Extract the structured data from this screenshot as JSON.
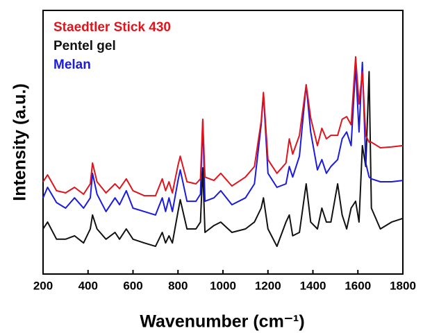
{
  "chart_data": {
    "type": "line",
    "x_label": "Wavenumber (cm⁻¹)",
    "y_label": "Intensity (a.u.)",
    "xlim": [
      200,
      1800
    ],
    "xticks": [
      200,
      400,
      600,
      800,
      1000,
      1200,
      1400,
      1600,
      1800
    ],
    "ylim": [
      0,
      100
    ],
    "x": [
      200,
      220,
      260,
      300,
      340,
      380,
      410,
      420,
      440,
      480,
      520,
      540,
      570,
      600,
      650,
      700,
      730,
      745,
      760,
      775,
      800,
      810,
      840,
      880,
      900,
      910,
      920,
      960,
      990,
      1040,
      1100,
      1140,
      1170,
      1180,
      1200,
      1240,
      1280,
      1295,
      1310,
      1340,
      1370,
      1390,
      1420,
      1440,
      1460,
      1480,
      1510,
      1530,
      1550,
      1570,
      1590,
      1605,
      1620,
      1635,
      1650,
      1660,
      1700,
      1750,
      1800
    ],
    "series": [
      {
        "name": "Staedtler Stick 430",
        "color": "#e0141c",
        "values": [
          35.0,
          37.6,
          31.6,
          30.8,
          32.9,
          30.3,
          34.2,
          42.1,
          35.0,
          30.8,
          34.2,
          32.4,
          36.1,
          31.6,
          29.7,
          29.7,
          36.1,
          31.6,
          35.0,
          30.8,
          41.3,
          44.7,
          35.0,
          34.2,
          36.1,
          58.7,
          36.8,
          35.5,
          38.2,
          33.4,
          36.8,
          40.8,
          57.9,
          68.9,
          43.4,
          38.2,
          42.1,
          51.3,
          45.5,
          52.6,
          71.8,
          59.2,
          48.7,
          55.3,
          51.3,
          52.6,
          52.6,
          58.7,
          59.7,
          56.6,
          82.4,
          64.5,
          76.8,
          52.6,
          50.0,
          50.0,
          47.9,
          48.2,
          48.7
        ]
      },
      {
        "name": "Pentel gel",
        "color": "#111111",
        "values": [
          17.1,
          19.7,
          13.2,
          13.2,
          14.5,
          11.8,
          17.1,
          22.4,
          17.1,
          13.2,
          15.8,
          13.2,
          17.1,
          13.2,
          11.8,
          10.5,
          15.8,
          11.8,
          14.5,
          11.8,
          23.7,
          28.2,
          17.1,
          17.1,
          19.7,
          40.3,
          15.8,
          18.4,
          19.7,
          15.8,
          17.1,
          19.7,
          25.0,
          28.9,
          17.1,
          10.5,
          19.7,
          22.4,
          14.5,
          15.8,
          34.2,
          19.7,
          17.1,
          25.0,
          19.7,
          19.7,
          34.2,
          22.4,
          17.1,
          25.0,
          27.6,
          19.7,
          48.7,
          40.8,
          76.8,
          25.0,
          17.1,
          19.7,
          21.1
        ]
      },
      {
        "name": "Melan",
        "color": "#1a1ae0",
        "values": [
          28.9,
          32.9,
          27.1,
          25.0,
          28.9,
          25.0,
          28.9,
          38.2,
          30.3,
          23.7,
          28.9,
          26.3,
          31.6,
          25.0,
          23.7,
          22.4,
          28.9,
          23.7,
          28.9,
          23.7,
          35.5,
          39.5,
          27.6,
          27.6,
          30.3,
          57.9,
          27.6,
          28.9,
          31.6,
          26.3,
          28.9,
          34.2,
          56.6,
          68.4,
          38.2,
          32.9,
          34.2,
          40.8,
          36.8,
          44.7,
          71.8,
          53.9,
          39.5,
          43.4,
          38.2,
          40.8,
          43.4,
          51.3,
          53.9,
          48.7,
          78.9,
          53.9,
          80.3,
          42.1,
          36.8,
          36.1,
          35.0,
          35.0,
          35.5
        ]
      }
    ]
  }
}
